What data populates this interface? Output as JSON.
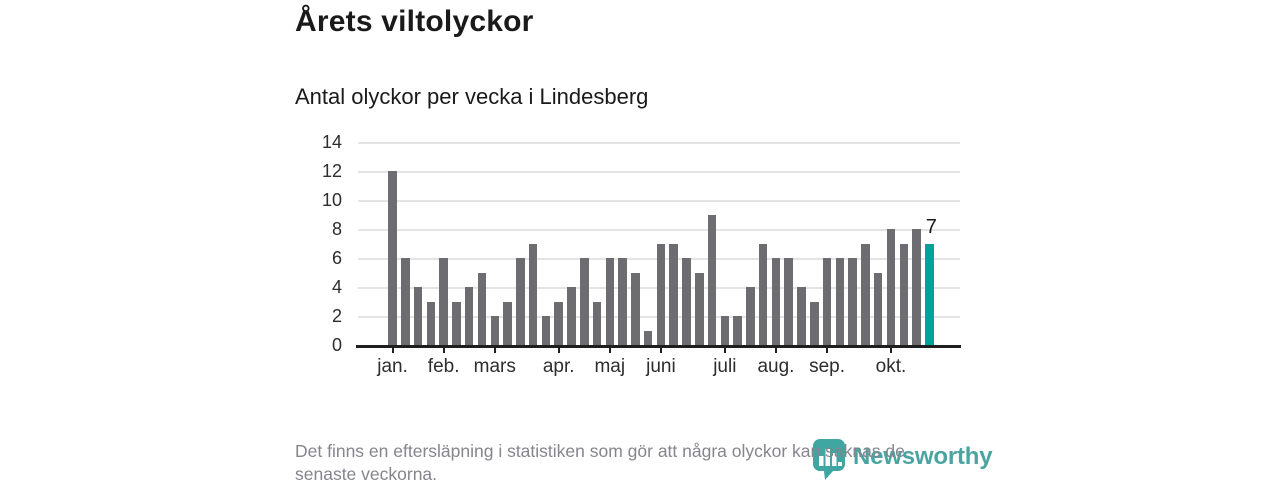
{
  "title": "Årets viltolyckor",
  "subtitle": "Antal olyckor per vecka i Lindesberg",
  "footnote_lines": [
    "Det finns en eftersläpning i statistiken som gör att några olyckor kan saknas de",
    "senaste veckorna."
  ],
  "branding": {
    "name": "Newsworthy",
    "icon": "bar-chart-pin-icon",
    "color": "#4AA5A1"
  },
  "chart_data": {
    "type": "bar",
    "title": "Årets viltolyckor",
    "subtitle": "Antal olyckor per vecka i Lindesberg",
    "x_unit": "week of year, jan.–okt.",
    "values": [
      12,
      6,
      4,
      3,
      6,
      3,
      4,
      5,
      2,
      3,
      6,
      7,
      2,
      3,
      4,
      6,
      3,
      6,
      6,
      5,
      1,
      7,
      7,
      6,
      5,
      9,
      2,
      2,
      4,
      7,
      6,
      6,
      4,
      3,
      6,
      6,
      6,
      7,
      5,
      8,
      7,
      8,
      7
    ],
    "highlighted_last_bar": {
      "value": 7,
      "label": "7"
    },
    "month_ticks": [
      {
        "label": "jan.",
        "week_index": 0
      },
      {
        "label": "feb.",
        "week_index": 4
      },
      {
        "label": "mars",
        "week_index": 8
      },
      {
        "label": "apr.",
        "week_index": 13
      },
      {
        "label": "maj",
        "week_index": 17
      },
      {
        "label": "juni",
        "week_index": 21
      },
      {
        "label": "juli",
        "week_index": 26
      },
      {
        "label": "aug.",
        "week_index": 30
      },
      {
        "label": "sep.",
        "week_index": 34
      },
      {
        "label": "okt.",
        "week_index": 39
      }
    ],
    "ylim": [
      0,
      14
    ],
    "yticks": [
      0,
      2,
      4,
      6,
      8,
      10,
      12,
      14
    ],
    "grid": "horizontal",
    "legend": "none",
    "colors": {
      "bar": "#6C6C71",
      "highlight": "#00A29B",
      "gridline": "#E4E4E4",
      "axis": "#1F1F1F",
      "text": "#1A1A1A",
      "muted": "#85858D"
    }
  }
}
